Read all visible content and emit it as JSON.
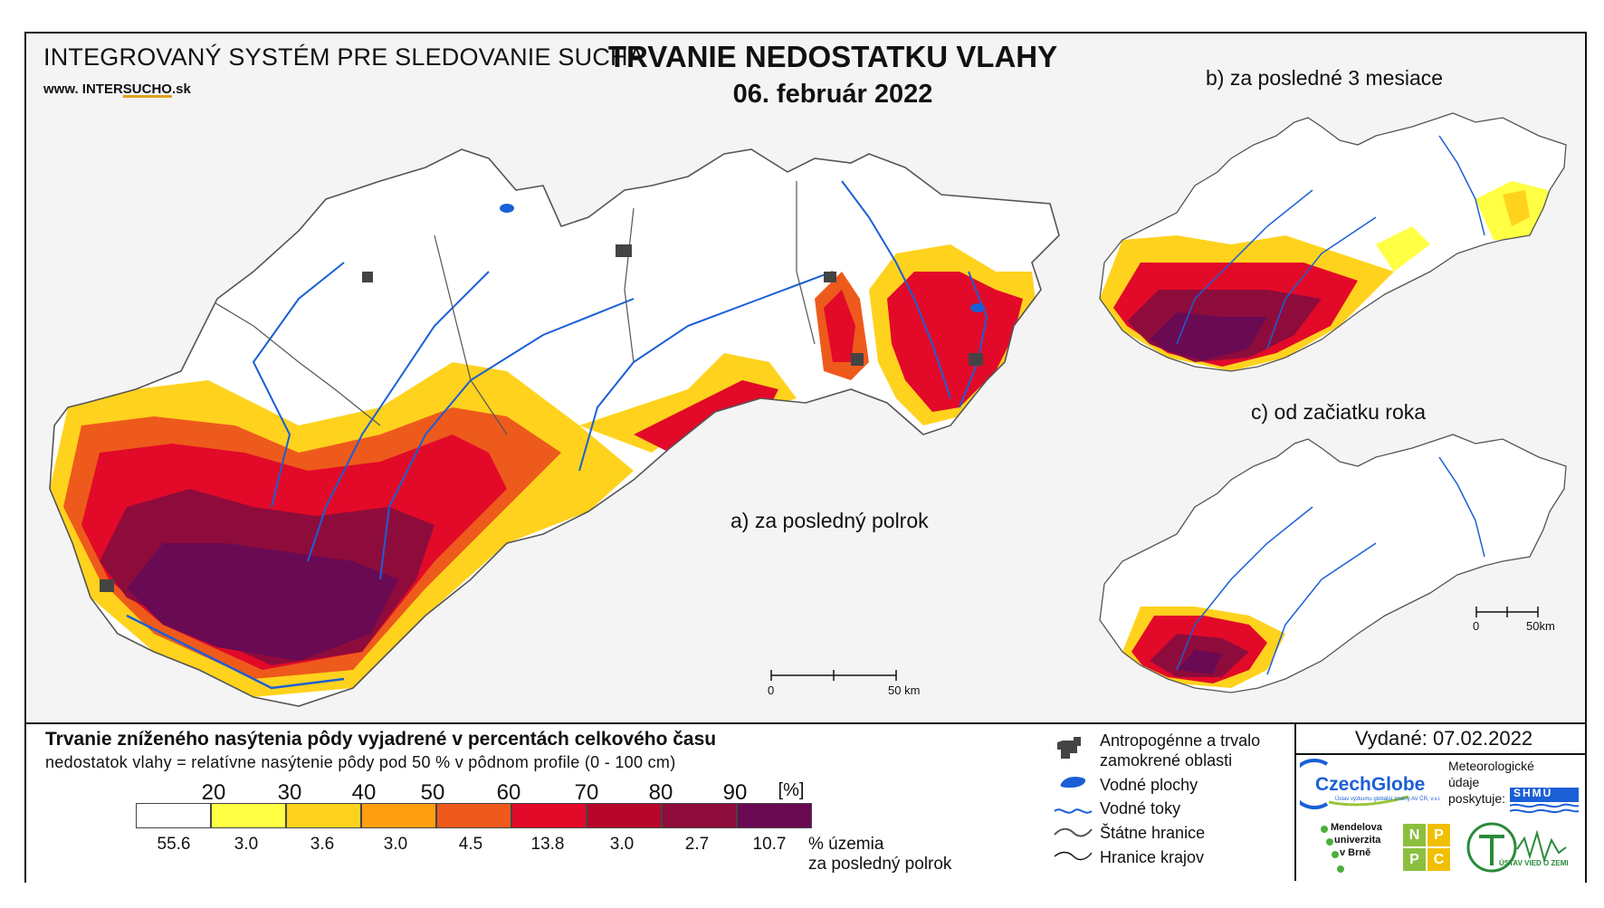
{
  "header": {
    "system_title": "INTEGROVANÝ SYSTÉM PRE SLEDOVANIE SUCHA",
    "website_prefix": "www. INTER",
    "website_brand": "SUCHO",
    "website_suffix": ".sk",
    "main_title": "TRVANIE NEDOSTATKU VLAHY",
    "date": "06. február 2022"
  },
  "maps": {
    "a_label": "a) za posledný polrok",
    "b_label": "b) za posledné 3 mesiace",
    "c_label": "c) od začiatku roka",
    "scale_zero": "0",
    "scale_fifty_km": "50 km",
    "scale_fifty_small": "50km"
  },
  "legend": {
    "title": "Trvanie zníženého nasýtenia pôdy vyjadrené v percentách celkového času",
    "subtitle": "nedostatok vlahy = relatívne nasýtenie pôdy pod 50 % v pôdnom profile (0 - 100 cm)",
    "ticks": [
      "20",
      "30",
      "40",
      "50",
      "60",
      "70",
      "80",
      "90",
      "[%]"
    ],
    "classes": [
      {
        "color": "#ffffff",
        "pct": "55.6"
      },
      {
        "color": "#ffff44",
        "pct": "3.0"
      },
      {
        "color": "#ffd21e",
        "pct": "3.6"
      },
      {
        "color": "#ff9f10",
        "pct": "3.0"
      },
      {
        "color": "#ee5a1c",
        "pct": "4.5"
      },
      {
        "color": "#e20a28",
        "pct": "13.8"
      },
      {
        "color": "#b8062a",
        "pct": "3.0"
      },
      {
        "color": "#8e0c3c",
        "pct": "2.7"
      },
      {
        "color": "#6a0a52",
        "pct": "10.7"
      }
    ],
    "area_label_line1": "% územia",
    "area_label_line2": "za posledný polrok"
  },
  "symbols": {
    "anthropogenic_line1": "Antropogénne a trvalo",
    "anthropogenic_line2": "zamokrené oblasti",
    "water_bodies": "Vodné plochy",
    "water_courses": "Vodné toky",
    "state_border": "Štátne hranice",
    "region_border": "Hranice krajov"
  },
  "credits": {
    "issued": "Vydané: 07.02.2022",
    "czechglobe": "CzechGlobe",
    "czechglobe_sub": "Ústav výzkumu globální změny AV ČR, v.v.i.",
    "met_line1": "Meteorologické",
    "met_line2": "údaje",
    "met_line3": "poskytuje:",
    "shmu": "SHMÚ",
    "mendel_line1": "Mendelova",
    "mendel_line2": "univerzita",
    "mendel_line3": "v Brně",
    "nppc": [
      "N",
      "P",
      "P",
      "C"
    ],
    "uvz": "ÚSTAV VIED O ZEMI"
  },
  "colors": {
    "water": "#1a5fd6",
    "anthropogenic": "#444444",
    "border": "#555555"
  }
}
